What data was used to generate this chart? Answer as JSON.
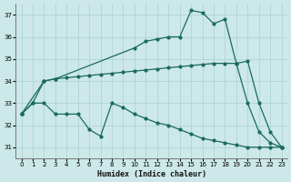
{
  "xlabel": "Humidex (Indice chaleur)",
  "ylabel": "",
  "xlim": [
    -0.5,
    23.5
  ],
  "ylim": [
    30.5,
    37.5
  ],
  "yticks": [
    31,
    32,
    33,
    34,
    35,
    36,
    37
  ],
  "xticks": [
    0,
    1,
    2,
    3,
    4,
    5,
    6,
    7,
    8,
    9,
    10,
    11,
    12,
    13,
    14,
    15,
    16,
    17,
    18,
    19,
    20,
    21,
    22,
    23
  ],
  "bg_color": "#cce8e8",
  "grid_color": "#b0d4d4",
  "line_color": "#1a6b5a",
  "line1_x": [
    0,
    2,
    3,
    10,
    11,
    12,
    13,
    14,
    15,
    16,
    17,
    18,
    19,
    20,
    21,
    22,
    23
  ],
  "line1_y": [
    32.5,
    34.0,
    34.1,
    35.5,
    35.8,
    35.9,
    36.0,
    36.0,
    37.2,
    37.1,
    36.6,
    36.8,
    34.8,
    34.9,
    33.0,
    31.7,
    31.0
  ],
  "line2_x": [
    0,
    1,
    2,
    3,
    4,
    5,
    6,
    7,
    8,
    9,
    10,
    11,
    12,
    13,
    14,
    15,
    16,
    17,
    18,
    19,
    20,
    21,
    22,
    23
  ],
  "line2_y": [
    32.5,
    33.0,
    34.0,
    34.1,
    34.15,
    34.2,
    34.25,
    34.3,
    34.35,
    34.4,
    34.45,
    34.5,
    34.55,
    34.6,
    34.65,
    34.7,
    34.75,
    34.8,
    34.8,
    34.8,
    33.0,
    31.7,
    31.2,
    31.0
  ],
  "line3_x": [
    0,
    1,
    2,
    3,
    4,
    5,
    6,
    7,
    8,
    9,
    10,
    11,
    12,
    13,
    14,
    15,
    16,
    17,
    18,
    19,
    20,
    21,
    22,
    23
  ],
  "line3_y": [
    32.5,
    33.0,
    33.0,
    32.5,
    32.5,
    32.5,
    31.8,
    31.5,
    33.0,
    32.8,
    32.5,
    32.3,
    32.1,
    32.0,
    31.8,
    31.6,
    31.4,
    31.3,
    31.2,
    31.1,
    31.0,
    31.0,
    31.0,
    31.0
  ]
}
